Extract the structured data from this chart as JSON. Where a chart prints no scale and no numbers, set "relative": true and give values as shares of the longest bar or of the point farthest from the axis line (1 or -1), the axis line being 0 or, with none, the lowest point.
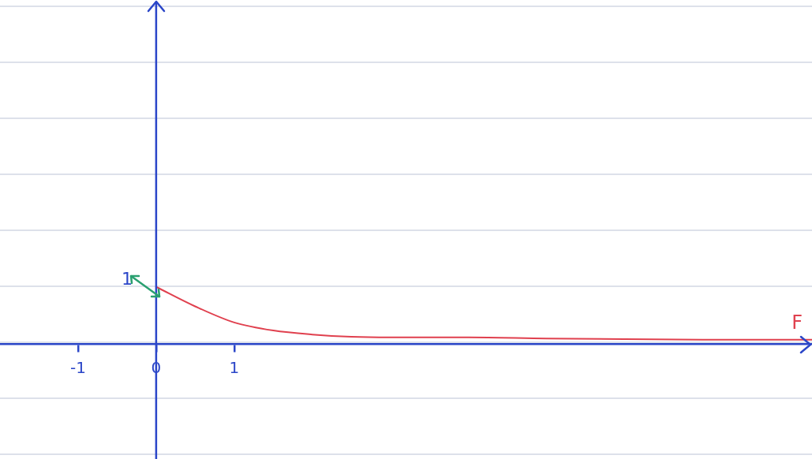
{
  "chart_data": {
    "type": "line",
    "relative": true,
    "x": [
      0,
      0.5,
      1,
      1.5,
      2,
      2.5,
      3,
      4,
      5,
      6,
      7,
      8.4
    ],
    "series": [
      {
        "name": "F",
        "color": "#e0404e",
        "values": [
          1,
          0.66,
          0.38,
          0.24,
          0.17,
          0.13,
          0.12,
          0.12,
          0.1,
          0.09,
          0.08,
          0.08
        ]
      }
    ],
    "xlim": [
      -2,
      8.4
    ],
    "xticks": [
      -1,
      0,
      1
    ],
    "annotations": [
      {
        "text": "1",
        "x": 0,
        "y": 1
      }
    ],
    "ref_lines": [
      {
        "axis": "x",
        "value": 0,
        "color": "#2b46c8"
      }
    ],
    "legend": false,
    "marker": "none",
    "line_style": "solid"
  }
}
